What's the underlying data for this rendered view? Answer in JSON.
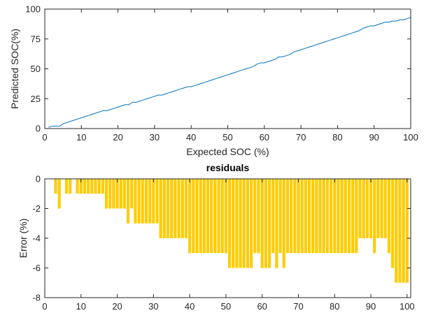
{
  "chart_data": [
    {
      "type": "line",
      "title": "",
      "xlabel": "Expected SOC (%)",
      "ylabel": "Predicted SOC(%)",
      "xlim": [
        0,
        100
      ],
      "ylim": [
        0,
        100
      ],
      "xticks": [
        "0",
        "10",
        "20",
        "30",
        "40",
        "50",
        "60",
        "70",
        "80",
        "90",
        "100"
      ],
      "yticks": [
        "0",
        "25",
        "50",
        "75",
        "100"
      ],
      "grid": false,
      "color": "#0072BD",
      "series": [
        {
          "x": [
            1,
            2,
            3,
            4,
            5,
            6,
            7,
            8,
            9,
            10,
            11,
            12,
            13,
            14,
            15,
            16,
            17,
            18,
            19,
            20,
            21,
            22,
            23,
            24,
            25,
            26,
            27,
            28,
            29,
            30,
            31,
            32,
            33,
            34,
            35,
            36,
            37,
            38,
            39,
            40,
            41,
            42,
            43,
            44,
            45,
            46,
            47,
            48,
            49,
            50,
            51,
            52,
            53,
            54,
            55,
            56,
            57,
            58,
            59,
            60,
            61,
            62,
            63,
            64,
            65,
            66,
            67,
            68,
            69,
            70,
            71,
            72,
            73,
            74,
            75,
            76,
            77,
            78,
            79,
            80,
            81,
            82,
            83,
            84,
            85,
            86,
            87,
            88,
            89,
            90,
            91,
            92,
            93,
            94,
            95,
            96,
            97,
            98,
            99,
            100
          ],
          "y": [
            1,
            2,
            2,
            2,
            4,
            5,
            6,
            7,
            8,
            9,
            10,
            11,
            12,
            13,
            14,
            15,
            15,
            16,
            17,
            18,
            19,
            20,
            20,
            22,
            22,
            23,
            24,
            25,
            26,
            27,
            28,
            28,
            29,
            30,
            31,
            32,
            33,
            34,
            35,
            35,
            36,
            37,
            38,
            39,
            40,
            41,
            42,
            43,
            44,
            45,
            46,
            47,
            48,
            49,
            50,
            51,
            52,
            54,
            55,
            55,
            56,
            57,
            58,
            60,
            60,
            61,
            62,
            64,
            65,
            66,
            67,
            68,
            69,
            70,
            71,
            72,
            73,
            74,
            75,
            76,
            77,
            78,
            79,
            80,
            81,
            82,
            84,
            85,
            86,
            86,
            87,
            88,
            89,
            89,
            90,
            90,
            91,
            91,
            92,
            93
          ]
        }
      ]
    },
    {
      "type": "bar",
      "title": "residuals",
      "xlabel": "",
      "ylabel": "Error (%)",
      "xlim": [
        0,
        101
      ],
      "ylim": [
        -8,
        0
      ],
      "xticks": [
        "0",
        "10",
        "20",
        "30",
        "40",
        "50",
        "60",
        "70",
        "80",
        "90",
        "100"
      ],
      "yticks": [
        "0",
        "-2",
        "-4",
        "-6",
        "-8"
      ],
      "grid": false,
      "color": "#FFCC00",
      "categories": [
        1,
        2,
        3,
        4,
        5,
        6,
        7,
        8,
        9,
        10,
        11,
        12,
        13,
        14,
        15,
        16,
        17,
        18,
        19,
        20,
        21,
        22,
        23,
        24,
        25,
        26,
        27,
        28,
        29,
        30,
        31,
        32,
        33,
        34,
        35,
        36,
        37,
        38,
        39,
        40,
        41,
        42,
        43,
        44,
        45,
        46,
        47,
        48,
        49,
        50,
        51,
        52,
        53,
        54,
        55,
        56,
        57,
        58,
        59,
        60,
        61,
        62,
        63,
        64,
        65,
        66,
        67,
        68,
        69,
        70,
        71,
        72,
        73,
        74,
        75,
        76,
        77,
        78,
        79,
        80,
        81,
        82,
        83,
        84,
        85,
        86,
        87,
        88,
        89,
        90,
        91,
        92,
        93,
        94,
        95,
        96,
        97,
        98,
        99,
        100
      ],
      "values": [
        0,
        0,
        -1,
        -2,
        0,
        -1,
        -1,
        0,
        -1,
        -1,
        -1,
        -1,
        -1,
        -1,
        -1,
        -1,
        -2,
        -2,
        -2,
        -2,
        -2,
        -2,
        -3,
        -2,
        -3,
        -3,
        -3,
        -3,
        -3,
        -3,
        -3,
        -4,
        -4,
        -4,
        -4,
        -4,
        -4,
        -4,
        -4,
        -5,
        -5,
        -5,
        -5,
        -5,
        -5,
        -5,
        -5,
        -5,
        -5,
        -5,
        -6,
        -6,
        -6,
        -6,
        -6,
        -6,
        -6,
        -5,
        -5,
        -6,
        -6,
        -6,
        -5,
        -6,
        -5,
        -6,
        -5,
        -5,
        -5,
        -5,
        -5,
        -5,
        -5,
        -5,
        -5,
        -5,
        -5,
        -5,
        -5,
        -5,
        -5,
        -5,
        -5,
        -5,
        -5,
        -5,
        -4,
        -4,
        -4,
        -4,
        -5,
        -4,
        -4,
        -4,
        -5,
        -6,
        -7,
        -7,
        -7,
        -7
      ]
    }
  ]
}
